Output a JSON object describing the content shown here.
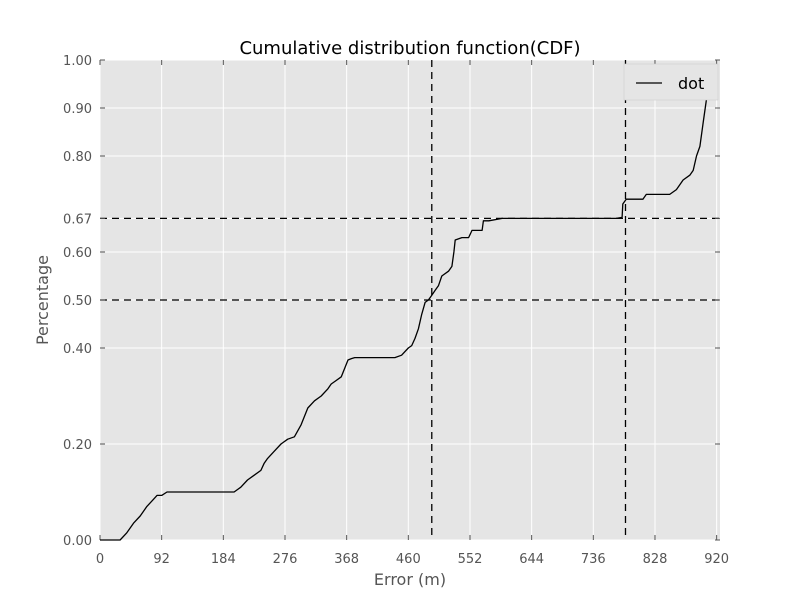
{
  "chart_data": {
    "type": "line",
    "title": "Cumulative distribution function(CDF)",
    "xlabel": "Error (m)",
    "ylabel": "Percentage",
    "xlim": [
      0,
      925
    ],
    "ylim": [
      0,
      1
    ],
    "xticks": [
      0,
      92,
      184,
      276,
      368,
      460,
      552,
      644,
      736,
      828,
      920
    ],
    "xtick_labels": [
      "0",
      "92",
      "184",
      "276",
      "368",
      "460",
      "552",
      "644",
      "736",
      "828",
      "920"
    ],
    "yticks": [
      0.0,
      0.2,
      0.4,
      0.5,
      0.6,
      0.67,
      0.8,
      0.9,
      1.0
    ],
    "ytick_labels": [
      "0.00",
      "0.20",
      "0.40",
      "0.50",
      "0.60",
      "0.67",
      "0.80",
      "0.90",
      "1.00"
    ],
    "grid": true,
    "legend_position": "top-right",
    "series": [
      {
        "name": "dot",
        "color": "#000000",
        "x": [
          0,
          30,
          40,
          50,
          60,
          70,
          80,
          85,
          92,
          100,
          150,
          200,
          205,
          210,
          220,
          230,
          240,
          245,
          250,
          260,
          270,
          280,
          290,
          300,
          310,
          320,
          330,
          340,
          345,
          350,
          360,
          370,
          375,
          380,
          400,
          440,
          450,
          460,
          465,
          470,
          475,
          480,
          485,
          490,
          495,
          500,
          505,
          510,
          520,
          525,
          528,
          530,
          540,
          550,
          555,
          560,
          570,
          572,
          580,
          600,
          700,
          770,
          779,
          780,
          785,
          800,
          810,
          815,
          820,
          835,
          850,
          860,
          865,
          870,
          880,
          885,
          890,
          895,
          900,
          905,
          910,
          915,
          918
        ],
        "y": [
          0.0,
          0.0,
          0.015,
          0.035,
          0.05,
          0.07,
          0.085,
          0.093,
          0.093,
          0.1,
          0.1,
          0.1,
          0.105,
          0.11,
          0.125,
          0.135,
          0.145,
          0.16,
          0.17,
          0.185,
          0.2,
          0.21,
          0.215,
          0.24,
          0.275,
          0.29,
          0.3,
          0.315,
          0.325,
          0.33,
          0.34,
          0.375,
          0.378,
          0.38,
          0.38,
          0.38,
          0.385,
          0.4,
          0.405,
          0.42,
          0.44,
          0.47,
          0.495,
          0.5,
          0.51,
          0.52,
          0.53,
          0.55,
          0.56,
          0.57,
          0.6,
          0.625,
          0.63,
          0.63,
          0.645,
          0.645,
          0.645,
          0.665,
          0.665,
          0.67,
          0.67,
          0.67,
          0.672,
          0.7,
          0.71,
          0.71,
          0.71,
          0.72,
          0.72,
          0.72,
          0.72,
          0.73,
          0.74,
          0.75,
          0.76,
          0.77,
          0.8,
          0.82,
          0.87,
          0.92,
          0.95,
          0.98,
          0.99
        ]
      }
    ],
    "reference_lines": {
      "horizontal": [
        0.5,
        0.67
      ],
      "vertical": [
        495,
        784
      ]
    }
  }
}
